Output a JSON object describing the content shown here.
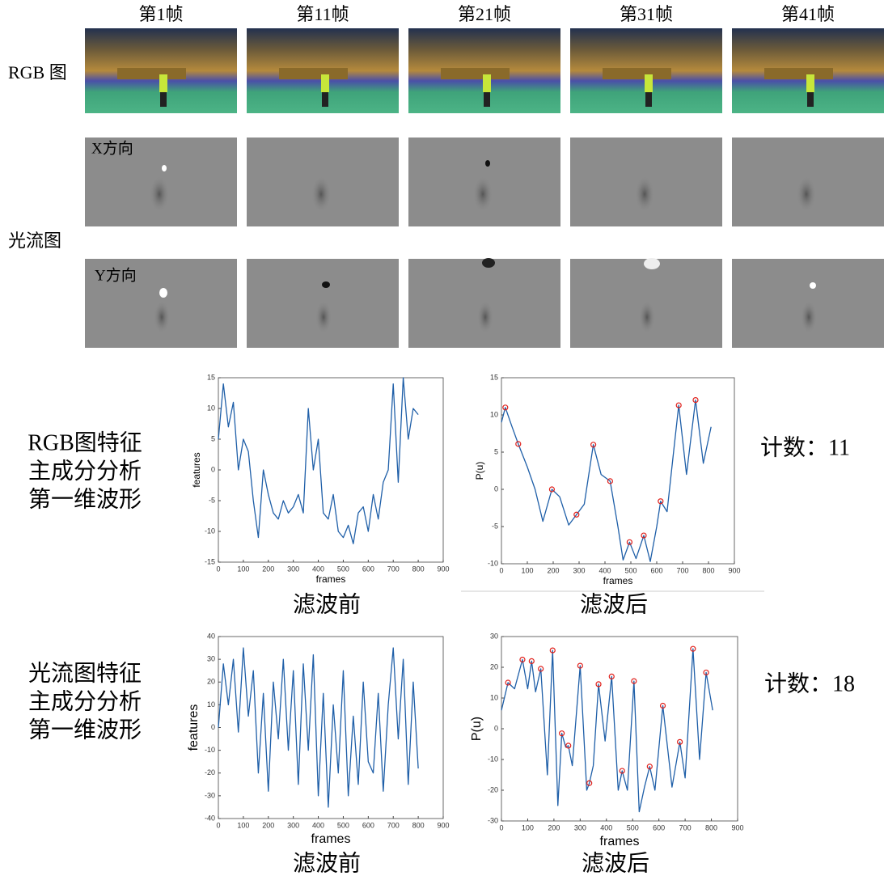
{
  "frame_labels": [
    "第1帧",
    "第11帧",
    "第21帧",
    "第31帧",
    "第41帧"
  ],
  "row_labels": {
    "rgb": "RGB 图",
    "flow": "光流图",
    "x_dir": "X方向",
    "y_dir": "Y方向"
  },
  "feature_rows": [
    {
      "label": [
        "RGB图特征",
        "主成分分析",
        "第一维波形"
      ],
      "count": "计数：11"
    },
    {
      "label": [
        "光流图特征",
        "主成分分析",
        "第一维波形"
      ],
      "count": "计数：18"
    }
  ],
  "chart_data": [
    {
      "type": "line",
      "caption": "滤波前",
      "xlabel": "frames",
      "ylabel": "features",
      "xlim": [
        0,
        900
      ],
      "ylim": [
        -15,
        15
      ],
      "xticks": [
        0,
        100,
        200,
        300,
        400,
        500,
        600,
        700,
        800,
        900
      ],
      "yticks": [
        -15,
        -10,
        -5,
        0,
        5,
        10,
        15
      ],
      "series": [
        {
          "color": "#1f5fa8",
          "x": [
            0,
            20,
            40,
            60,
            80,
            100,
            120,
            140,
            160,
            180,
            200,
            220,
            240,
            260,
            280,
            300,
            320,
            340,
            360,
            380,
            400,
            420,
            440,
            460,
            480,
            500,
            520,
            540,
            560,
            580,
            600,
            620,
            640,
            660,
            680,
            700,
            720,
            740,
            760,
            780,
            800
          ],
          "values": [
            5,
            14,
            7,
            11,
            0,
            5,
            3,
            -5,
            -11,
            0,
            -4,
            -7,
            -8,
            -5,
            -7,
            -6,
            -4,
            -7,
            10,
            0,
            5,
            -7,
            -8,
            -4,
            -10,
            -11,
            -9,
            -12,
            -7,
            -6,
            -10,
            -4,
            -8,
            -2,
            0,
            14,
            -2,
            15,
            5,
            10,
            9
          ]
        }
      ]
    },
    {
      "type": "line",
      "caption": "滤波后",
      "xlabel": "frames",
      "ylabel": "P(u)",
      "xlim": [
        0,
        900
      ],
      "ylim": [
        -10,
        15
      ],
      "xticks": [
        0,
        100,
        200,
        300,
        400,
        500,
        600,
        700,
        800,
        900
      ],
      "yticks": [
        -10,
        -5,
        0,
        5,
        10,
        15
      ],
      "series": [
        {
          "color": "#1f5fa8",
          "x": [
            0,
            15,
            40,
            65,
            100,
            130,
            160,
            195,
            225,
            260,
            290,
            320,
            355,
            385,
            420,
            450,
            470,
            495,
            520,
            550,
            575,
            600,
            615,
            640,
            665,
            685,
            715,
            750,
            780,
            810
          ],
          "values": [
            9,
            11,
            8.5,
            6.1,
            3,
            0,
            -4.3,
            0,
            -1,
            -4.8,
            -3.4,
            -2,
            6,
            2,
            1.1,
            -5,
            -9.5,
            -7.1,
            -9.3,
            -6.2,
            -9.7,
            -5,
            -1.6,
            -3,
            5,
            11.3,
            2,
            12,
            3.5,
            8.4
          ]
        },
        {
          "color": "#e0201b",
          "marker": "circle",
          "line": false,
          "x": [
            15,
            65,
            195,
            290,
            355,
            420,
            495,
            550,
            615,
            685,
            750
          ],
          "values": [
            11,
            6.1,
            0,
            -3.4,
            6,
            1.1,
            -7.1,
            -6.2,
            -1.6,
            11.3,
            12
          ]
        }
      ]
    },
    {
      "type": "line",
      "caption": "滤波前",
      "xlabel": "frames",
      "ylabel": "features",
      "xlim": [
        0,
        900
      ],
      "ylim": [
        -40,
        40
      ],
      "xticks": [
        0,
        100,
        200,
        300,
        400,
        500,
        600,
        700,
        800,
        900
      ],
      "yticks": [
        -40,
        -30,
        -20,
        -10,
        0,
        10,
        20,
        30,
        40
      ],
      "series": [
        {
          "color": "#1f5fa8",
          "x": [
            0,
            20,
            40,
            60,
            80,
            100,
            120,
            140,
            160,
            180,
            200,
            220,
            240,
            260,
            280,
            300,
            320,
            340,
            360,
            380,
            400,
            420,
            440,
            460,
            480,
            500,
            520,
            540,
            560,
            580,
            600,
            620,
            640,
            660,
            680,
            700,
            720,
            740,
            760,
            780,
            800
          ],
          "values": [
            0,
            28,
            10,
            30,
            -2,
            35,
            5,
            25,
            -20,
            15,
            -28,
            20,
            -5,
            30,
            -10,
            25,
            -25,
            28,
            -10,
            32,
            -30,
            15,
            -35,
            10,
            -20,
            25,
            -30,
            5,
            -25,
            20,
            -15,
            -20,
            15,
            -28,
            10,
            35,
            -5,
            30,
            -25,
            20,
            -18
          ]
        }
      ]
    },
    {
      "type": "line",
      "caption": "滤波后",
      "xlabel": "frames",
      "ylabel": "P(u)",
      "xlim": [
        0,
        900
      ],
      "ylim": [
        -30,
        30
      ],
      "xticks": [
        0,
        100,
        200,
        300,
        400,
        500,
        600,
        700,
        800,
        900
      ],
      "yticks": [
        -30,
        -20,
        -10,
        0,
        10,
        20,
        30
      ],
      "series": [
        {
          "color": "#1f5fa8",
          "x": [
            0,
            25,
            50,
            80,
            100,
            115,
            130,
            150,
            175,
            195,
            215,
            230,
            245,
            255,
            270,
            300,
            325,
            335,
            350,
            370,
            395,
            420,
            445,
            460,
            480,
            505,
            525,
            545,
            565,
            585,
            615,
            650,
            680,
            700,
            730,
            755,
            780,
            805
          ],
          "values": [
            6,
            15,
            13,
            22.5,
            13,
            22,
            12,
            19.5,
            -15,
            25.5,
            -25,
            -1.5,
            -6,
            -5.5,
            -12,
            20.5,
            -20,
            -17.7,
            -12,
            14.5,
            -4,
            17,
            -20,
            -13.7,
            -20,
            15.5,
            -27,
            -19,
            -12.3,
            -20,
            7.5,
            -19,
            -4.3,
            -16,
            26,
            -10,
            18.3,
            6
          ]
        },
        {
          "color": "#e0201b",
          "marker": "circle",
          "line": false,
          "x": [
            25,
            80,
            115,
            150,
            195,
            230,
            255,
            300,
            335,
            370,
            420,
            460,
            505,
            565,
            615,
            680,
            730,
            780
          ],
          "values": [
            15,
            22.5,
            22,
            19.5,
            25.5,
            -1.5,
            -5.5,
            20.5,
            -17.7,
            14.5,
            17,
            -13.7,
            15.5,
            -12.3,
            7.5,
            -4.3,
            26,
            18.3
          ]
        }
      ]
    }
  ]
}
